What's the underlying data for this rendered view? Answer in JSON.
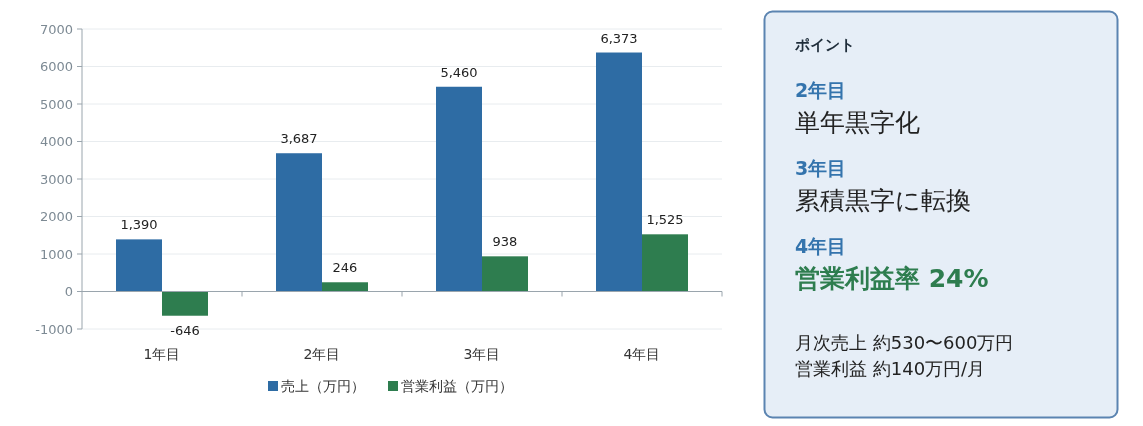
{
  "chart_data": [
    {
      "type": "bar",
      "categories": [
        "1年目",
        "2年目",
        "3年目",
        "4年目"
      ],
      "series": [
        {
          "name": "売上（万円）",
          "color": "#2e6ca4",
          "values": [
            1390,
            3687,
            5460,
            6373
          ],
          "value_labels": [
            "1,390",
            "3,687",
            "5,460",
            "6,373"
          ]
        },
        {
          "name": "営業利益（万円）",
          "color": "#2e7d4f",
          "values": [
            -646,
            246,
            938,
            1525
          ],
          "value_labels": [
            "-646",
            "246",
            "938",
            "1,525"
          ]
        }
      ],
      "ylim": [
        -1000,
        7000
      ],
      "yticks": [
        -1000,
        0,
        1000,
        2000,
        3000,
        4000,
        5000,
        6000,
        7000
      ],
      "grid": "y",
      "legend": "bottom"
    },
    {
      "type": "other",
      "title": "ポイント",
      "annotations": [
        "2年目",
        "単年黒字化",
        "3年目",
        "累積黒字に転換",
        "4年目",
        "営業利益率 24%",
        "月次売上 約530〜600万円",
        "営業利益 約140万円/月"
      ]
    }
  ]
}
